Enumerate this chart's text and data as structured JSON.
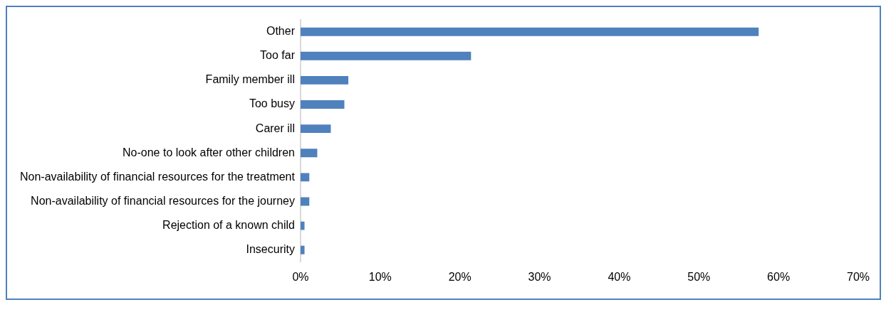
{
  "chart_data": {
    "type": "bar",
    "orientation": "horizontal",
    "categories": [
      "Other",
      "Too far",
      "Family member ill",
      "Too busy",
      "Carer ill",
      "No-one to look after other children",
      "Non-availability of financial resources for the treatment",
      "Non-availability of financial resources for the journey",
      "Rejection of a known child",
      "Insecurity"
    ],
    "values": [
      57.5,
      21.4,
      6.0,
      5.5,
      3.8,
      2.1,
      1.1,
      1.1,
      0.5,
      0.5
    ],
    "color": "#4f81bd",
    "xlim": [
      0,
      70
    ],
    "xticks": [
      {
        "value": 0,
        "label": "0%"
      },
      {
        "value": 10,
        "label": "10%"
      },
      {
        "value": 20,
        "label": "20%"
      },
      {
        "value": 30,
        "label": "30%"
      },
      {
        "value": 40,
        "label": "40%"
      },
      {
        "value": 50,
        "label": "50%"
      },
      {
        "value": 60,
        "label": "60%"
      },
      {
        "value": 70,
        "label": "70%"
      }
    ],
    "grid": false,
    "legend": false
  }
}
